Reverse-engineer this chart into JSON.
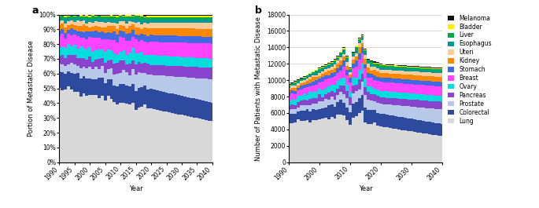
{
  "categories": [
    "Lung",
    "Colorectal",
    "Prostate",
    "Pancreas",
    "Ovary",
    "Breast",
    "Stomach",
    "Kidney",
    "Uteri",
    "Esophagus",
    "Liver",
    "Bladder",
    "Melanoma"
  ],
  "plot_colors": [
    "#d8d8d8",
    "#2e4a9e",
    "#b8c8e8",
    "#8844cc",
    "#00dddd",
    "#ff44ff",
    "#4169e1",
    "#ff8800",
    "#ffcc99",
    "#009999",
    "#00aa44",
    "#ffee00",
    "#111111"
  ],
  "years_all": [
    1990,
    1991,
    1992,
    1993,
    1994,
    1995,
    1996,
    1997,
    1998,
    1999,
    2000,
    2001,
    2002,
    2003,
    2004,
    2005,
    2006,
    2007,
    2008,
    2009,
    2010,
    2011,
    2012,
    2013,
    2014,
    2015,
    2016,
    2017,
    2018,
    2019,
    2020,
    2021,
    2022,
    2023,
    2024,
    2025,
    2026,
    2027,
    2028,
    2029,
    2030,
    2031,
    2032,
    2033,
    2034,
    2035,
    2036,
    2037,
    2038,
    2039,
    2040
  ],
  "panel_a_ylabel": "Portion of Metastatic Disease",
  "panel_b_ylabel": "Number of Patients with Metastatic Disease",
  "xlabel": "Year",
  "panel_a_label": "a",
  "panel_b_label": "b",
  "legend_labels": [
    "Melanoma",
    "Bladder",
    "Liver",
    "Esophagus",
    "Uteri",
    "Kidney",
    "Stomach",
    "Breast",
    "Ovary",
    "Pancreas",
    "Prostate",
    "Colorectal",
    "Lung"
  ]
}
